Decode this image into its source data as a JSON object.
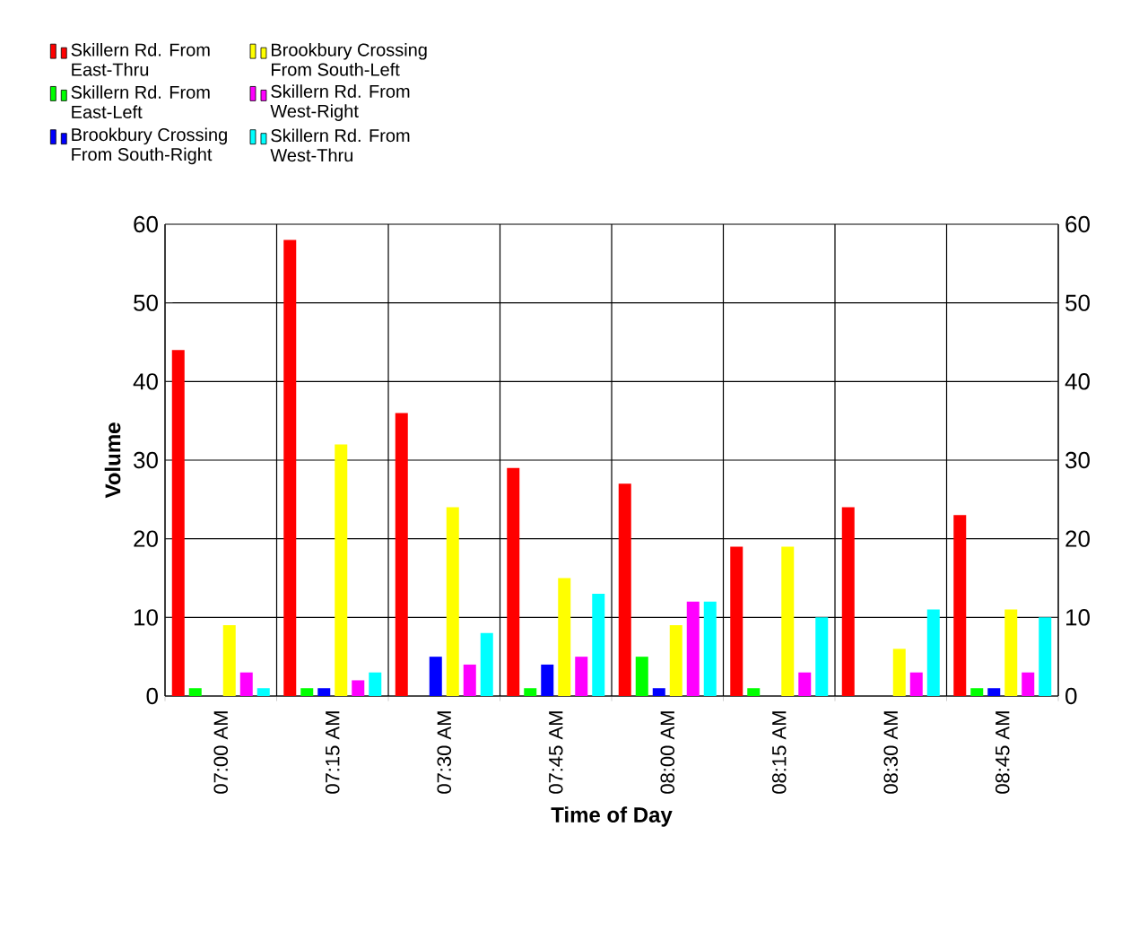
{
  "chart_data": {
    "type": "bar",
    "xlabel": "Time of Day",
    "ylabel": "Volume",
    "categories": [
      "07:00 AM",
      "07:15 AM",
      "07:30 AM",
      "07:45 AM",
      "08:00 AM",
      "08:15 AM",
      "08:30 AM",
      "08:45 AM"
    ],
    "series": [
      {
        "name": "Skillern Rd. From East-Thru",
        "color": "#ff0000",
        "values": [
          44,
          58,
          36,
          29,
          27,
          19,
          24,
          23
        ]
      },
      {
        "name": "Skillern Rd. From East-Left",
        "color": "#00ff00",
        "values": [
          1,
          1,
          0,
          1,
          5,
          1,
          0,
          1
        ]
      },
      {
        "name": "Brookbury Crossing From South-Right",
        "color": "#0000ff",
        "values": [
          0,
          1,
          5,
          4,
          1,
          0,
          0,
          1
        ]
      },
      {
        "name": "Brookbury Crossing From South-Left",
        "color": "#ffff00",
        "values": [
          9,
          32,
          24,
          15,
          9,
          19,
          6,
          11
        ]
      },
      {
        "name": "Skillern Rd. From West-Right",
        "color": "#ff00ff",
        "values": [
          3,
          2,
          4,
          5,
          12,
          3,
          3,
          3
        ]
      },
      {
        "name": "Skillern Rd. From West-Thru",
        "color": "#00ffff",
        "values": [
          1,
          3,
          8,
          13,
          12,
          10,
          11,
          10
        ]
      }
    ],
    "ylim": [
      0,
      60
    ],
    "yticks": [
      0,
      10,
      20,
      30,
      40,
      50,
      60
    ],
    "y2lim": [
      0,
      60
    ],
    "y2ticks": [
      0,
      10,
      20,
      30,
      40,
      50,
      60
    ],
    "grid": true,
    "legend": "top"
  }
}
